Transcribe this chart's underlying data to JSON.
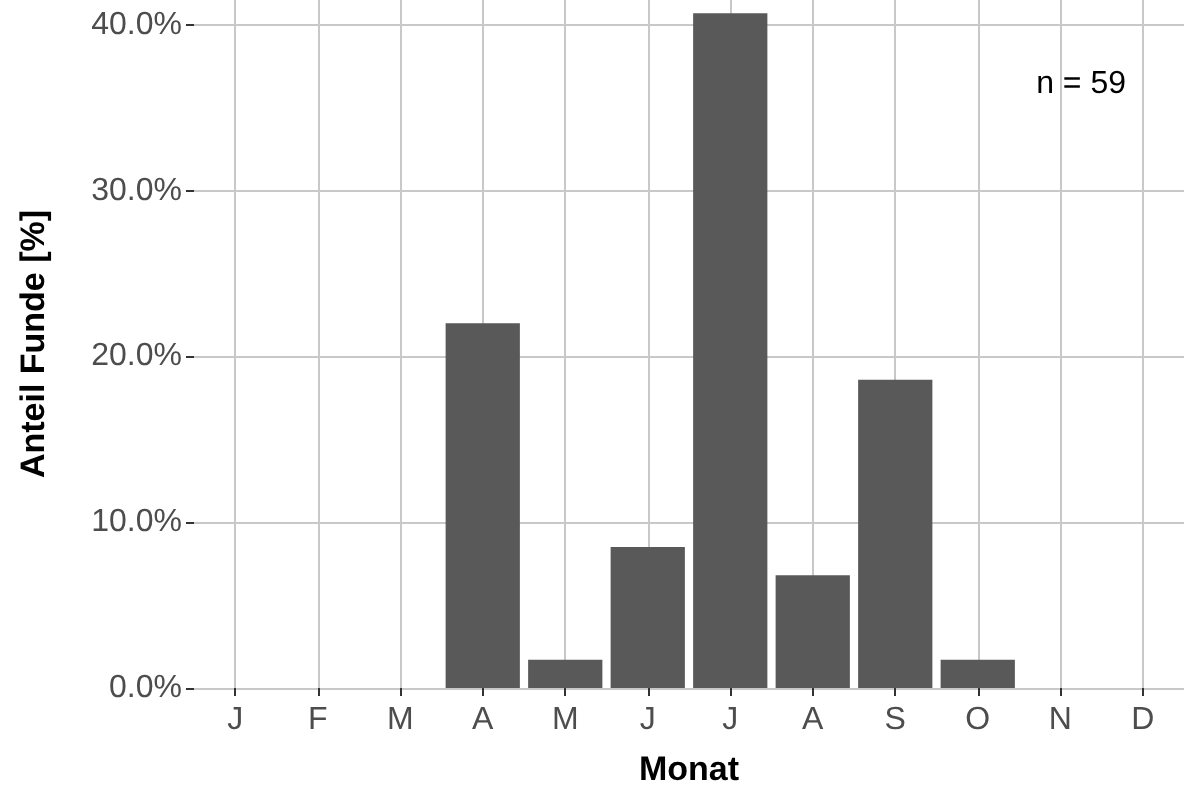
{
  "chart_data": {
    "type": "bar",
    "xlabel": "Monat",
    "ylabel": "Anteil Funde [%]",
    "categories": [
      "J",
      "F",
      "M",
      "A",
      "M",
      "J",
      "J",
      "A",
      "S",
      "O",
      "N",
      "D"
    ],
    "values": [
      0,
      0,
      0,
      22.0,
      1.7,
      8.5,
      40.7,
      6.8,
      18.6,
      1.7,
      0,
      0
    ],
    "color": "#595959",
    "ylim": [
      0,
      41.5
    ],
    "yticks": [
      {
        "value": 0,
        "label": "0.0%"
      },
      {
        "value": 10,
        "label": "10.0%"
      },
      {
        "value": 20,
        "label": "20.0%"
      },
      {
        "value": 30,
        "label": "30.0%"
      },
      {
        "value": 40,
        "label": "40.0%"
      }
    ],
    "grid": true,
    "annotations": [
      "n = 59"
    ]
  }
}
